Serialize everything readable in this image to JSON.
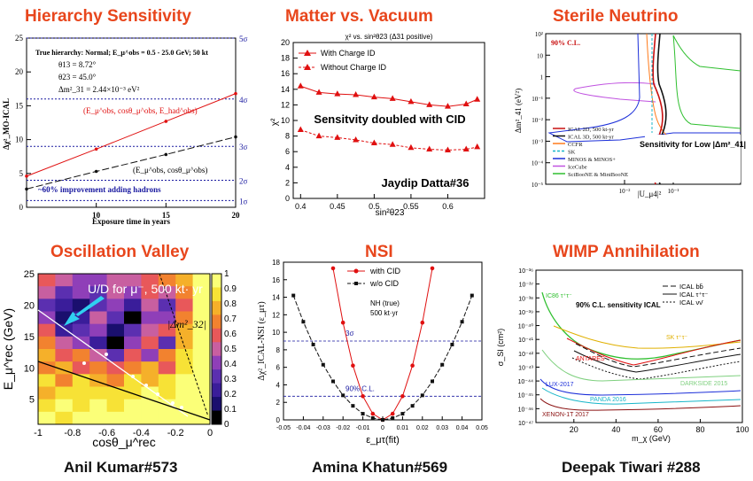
{
  "titles": {
    "p1": "Hierarchy Sensitivity",
    "p2": "Matter vs. Vacuum",
    "p3": "Sterile Neutrino",
    "p4": "Oscillation Valley",
    "p5": "NSI",
    "p6": "WIMP Annihilation"
  },
  "authors": {
    "a4": "Anil Kumar#573",
    "a5": "Amina Khatun#569",
    "a6": "Deepak Tiwari #288"
  },
  "chart_data": [
    {
      "id": "hierarchy",
      "type": "line",
      "xlabel": "Exposure time in years",
      "ylabel": "Δχ²_MO-ICAL",
      "xlim": [
        5,
        20
      ],
      "ylim": [
        0,
        25
      ],
      "xticks": [
        "10",
        "15",
        "20"
      ],
      "yticks": [
        "0",
        "5",
        "10",
        "15",
        "20",
        "25"
      ],
      "sigma_labels": [
        "1σ",
        "2σ",
        "3σ",
        "4σ",
        "5σ"
      ],
      "sigma_levels": [
        1,
        4,
        9,
        16,
        25
      ],
      "annotations": [
        "True hierarchy: Normal; E_μ^obs = 0.5 - 25.0 GeV; 50 kt",
        "θ13 = 8.72°",
        "θ23 = 45.0°",
        "Δm²_31 = 2.44×10⁻³ eV²"
      ],
      "callout": "~60% improvement adding hadrons",
      "series": [
        {
          "name": "(E_μ^obs, cosθ_μ^obs, E_had^obs)",
          "color": "#e01010",
          "x": [
            5,
            10,
            15,
            20
          ],
          "y": [
            4.6,
            8.6,
            12.7,
            16.8
          ]
        },
        {
          "name": "(E_μ^obs, cosθ_μ^obs)",
          "color": "#111111",
          "x": [
            5,
            10,
            15,
            20
          ],
          "y": [
            2.7,
            5.3,
            7.8,
            10.4
          ]
        }
      ]
    },
    {
      "id": "matter",
      "type": "line",
      "title": "χ² vs. sin²θ23 (Δ31 positive)",
      "xlabel": "sin²θ23",
      "ylabel": "χ²",
      "xlim": [
        0.39,
        0.65
      ],
      "ylim": [
        0,
        20
      ],
      "xticks": [
        "0.4",
        "0.45",
        "0.5",
        "0.55",
        "0.6"
      ],
      "yticks": [
        "0",
        "2",
        "4",
        "6",
        "8",
        "10",
        "12",
        "14",
        "16",
        "18",
        "20"
      ],
      "note": "Sensitvity doubled with CID",
      "author_tag": "Jaydip Datta#36",
      "series": [
        {
          "name": "With Charge ID",
          "color": "#e01010",
          "x": [
            0.4,
            0.425,
            0.45,
            0.475,
            0.5,
            0.525,
            0.55,
            0.575,
            0.6,
            0.625,
            0.64
          ],
          "y": [
            14.4,
            13.6,
            13.4,
            13.3,
            13.0,
            12.8,
            12.4,
            12.0,
            11.8,
            12.1,
            12.7
          ]
        },
        {
          "name": "Without Charge ID",
          "color": "#e01010",
          "x": [
            0.4,
            0.425,
            0.45,
            0.475,
            0.5,
            0.525,
            0.55,
            0.575,
            0.6,
            0.625,
            0.64
          ],
          "y": [
            8.8,
            8.0,
            7.8,
            7.5,
            7.1,
            6.9,
            6.5,
            6.3,
            6.2,
            6.3,
            6.6
          ]
        }
      ]
    },
    {
      "id": "sterile",
      "type": "line",
      "xlabel": "|U_μ4|²",
      "ylabel": "Δm²_41 (eV²)",
      "xscale": "log",
      "yscale": "log",
      "xticks": [
        "10⁻²",
        "10⁻¹"
      ],
      "yticks": [
        "10⁻⁵",
        "10⁻⁴",
        "10⁻³",
        "10⁻²",
        "10⁻¹",
        "1",
        "10",
        "10²"
      ],
      "cl": "90% C.L.",
      "note": "Sensitivity for Low |Δm²_41|",
      "series": [
        {
          "name": "ICAL 2D, 500 kt-yr",
          "color": "#c81010"
        },
        {
          "name": "ICAL 3D, 500 kt-yr",
          "color": "#111111"
        },
        {
          "name": "CCFR",
          "color": "#ff7a1a"
        },
        {
          "name": "SK",
          "color": "#17b6c9"
        },
        {
          "name": "MINOS & MINOS+",
          "color": "#1c2fd9"
        },
        {
          "name": "IceCube",
          "color": "#c052e0"
        },
        {
          "name": "SciBooNE & MiniBooNE",
          "color": "#2fbf2f"
        }
      ]
    },
    {
      "id": "valley",
      "type": "heatmap",
      "xlabel": "cosθ_μ^rec",
      "ylabel": "E_μ^rec (GeV)",
      "xlim": [
        -1,
        0
      ],
      "ylim": [
        1,
        25
      ],
      "xticks": [
        "-1",
        "-0.8",
        "-0.6",
        "-0.4",
        "-0.2",
        "0"
      ],
      "yticks": [
        "5",
        "10",
        "15",
        "20",
        "25"
      ],
      "colorbar_ticks": [
        "0",
        "0.1",
        "0.2",
        "0.3",
        "0.4",
        "0.5",
        "0.6",
        "0.7",
        "0.8",
        "0.9",
        "1"
      ],
      "callout": "U/D for μ⁻, 500 kt· yr",
      "label": "|Δm²_32|"
    },
    {
      "id": "nsi",
      "type": "line",
      "xlabel": "ε_μτ(fit)",
      "ylabel": "Δχ²_ICAL-NSI (ε_μτ)",
      "xlim": [
        -0.05,
        0.05
      ],
      "ylim": [
        0,
        18
      ],
      "xticks": [
        "-0.05",
        "-0.04",
        "-0.03",
        "-0.02",
        "-0.01",
        "0",
        "0.01",
        "0.02",
        "0.03",
        "0.04",
        "0.05"
      ],
      "yticks": [
        "0",
        "2",
        "4",
        "6",
        "8",
        "10",
        "12",
        "14",
        "16",
        "18"
      ],
      "annotations": [
        "NH (true)",
        "500 kt·yr"
      ],
      "levels": [
        {
          "label": "3σ",
          "y": 9
        },
        {
          "label": "90% C.L.",
          "y": 2.7
        }
      ],
      "series": [
        {
          "name": "with CID",
          "color": "#e01010",
          "x": [
            -0.025,
            -0.02,
            -0.015,
            -0.01,
            -0.005,
            0,
            0.005,
            0.01,
            0.015,
            0.02,
            0.025
          ],
          "y": [
            17.3,
            11.1,
            6.2,
            2.7,
            0.7,
            0.0,
            0.7,
            2.7,
            6.2,
            11.1,
            17.3
          ]
        },
        {
          "name": "w/o CID",
          "color": "#111111",
          "x": [
            -0.045,
            -0.04,
            -0.035,
            -0.03,
            -0.025,
            -0.02,
            -0.015,
            -0.01,
            -0.005,
            0,
            0.005,
            0.01,
            0.015,
            0.02,
            0.025,
            0.03,
            0.035,
            0.04,
            0.045
          ],
          "y": [
            14.2,
            11.2,
            8.6,
            6.3,
            4.4,
            2.8,
            1.6,
            0.7,
            0.2,
            0.0,
            0.2,
            0.7,
            1.6,
            2.8,
            4.4,
            6.3,
            8.6,
            11.2,
            14.2
          ]
        }
      ]
    },
    {
      "id": "wimp",
      "type": "line",
      "xlabel": "m_χ (GeV)",
      "ylabel": "σ_SI (cm²)",
      "xlim": [
        2,
        100
      ],
      "yscale": "log",
      "ylim": [
        -47,
        -36
      ],
      "xticks": [
        "20",
        "40",
        "60",
        "80",
        "100"
      ],
      "yticks": [
        "10⁻³⁶",
        "10⁻³⁷",
        "10⁻³⁸",
        "10⁻³⁹",
        "10⁻⁴⁰",
        "10⁻⁴¹",
        "10⁻⁴²",
        "10⁻⁴³",
        "10⁻⁴⁴",
        "10⁻⁴⁵",
        "10⁻⁴⁶",
        "10⁻⁴⁷"
      ],
      "note": "90% C.L. sensitivity ICAL",
      "legend": [
        "ICAL bb̄",
        "ICAL τ⁺τ⁻",
        "ICAL νν̄"
      ],
      "labels": [
        "IC86 τ⁺τ⁻",
        "SK τ⁺τ⁻",
        "ANTARES",
        "DARKSIDE 2015",
        "LUX-2017",
        "PANDA 2016",
        "XENON-1T 2017"
      ]
    }
  ]
}
